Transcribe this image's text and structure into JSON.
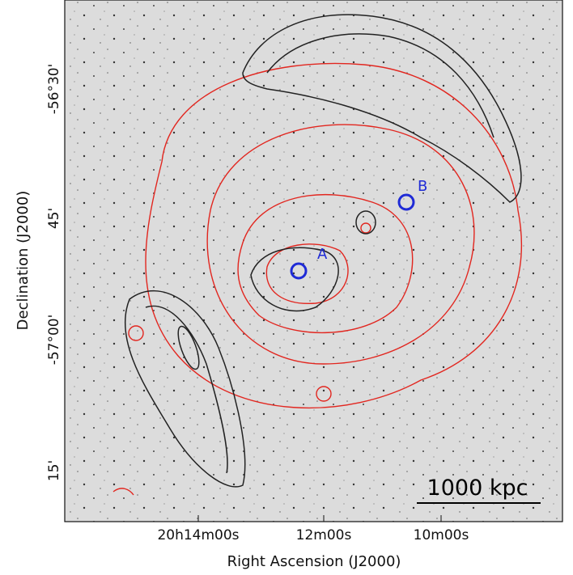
{
  "axes": {
    "x_label": "Right Ascension (J2000)",
    "y_label": "Declination (J2000)",
    "x_ticks": [
      "20h14m00s",
      "12m00s",
      "10m00s"
    ],
    "y_ticks": [
      "-56°30'",
      "45'",
      "-57°00'",
      "15'"
    ]
  },
  "annotations": {
    "source_a": "A",
    "source_b": "B",
    "scale_bar": "1000 kpc"
  }
}
